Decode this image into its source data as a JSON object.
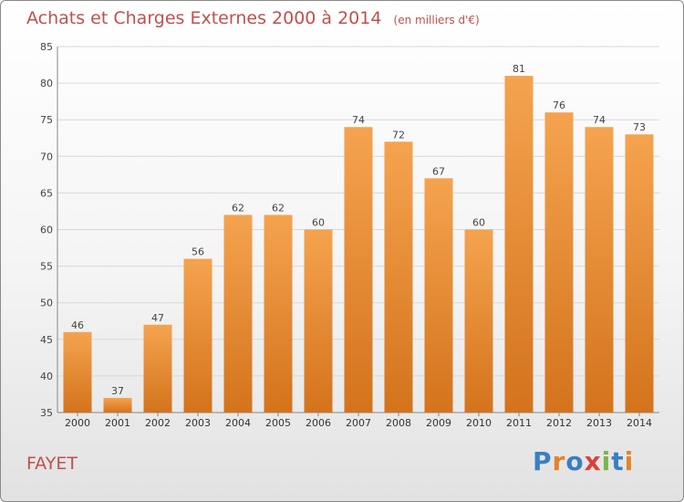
{
  "header": {
    "title": "Achats et Charges Externes 2000 à 2014",
    "unit": "(en milliers d'€)"
  },
  "footer": {
    "place": "FAYET",
    "brand": "Proxiti"
  },
  "colors": {
    "bar_top": "#f5a34f",
    "bar_bottom": "#d4731c",
    "title": "#c0504d"
  },
  "chart_data": {
    "type": "bar",
    "categories": [
      "2000",
      "2001",
      "2002",
      "2003",
      "2004",
      "2005",
      "2006",
      "2007",
      "2008",
      "2009",
      "2010",
      "2011",
      "2012",
      "2013",
      "2014"
    ],
    "values": [
      46,
      37,
      47,
      56,
      62,
      62,
      60,
      74,
      72,
      67,
      60,
      81,
      76,
      74,
      73
    ],
    "ylim": [
      35,
      85
    ],
    "yticks": [
      35,
      40,
      45,
      50,
      55,
      60,
      65,
      70,
      75,
      80,
      85
    ],
    "grid": true,
    "data_labels": true
  }
}
